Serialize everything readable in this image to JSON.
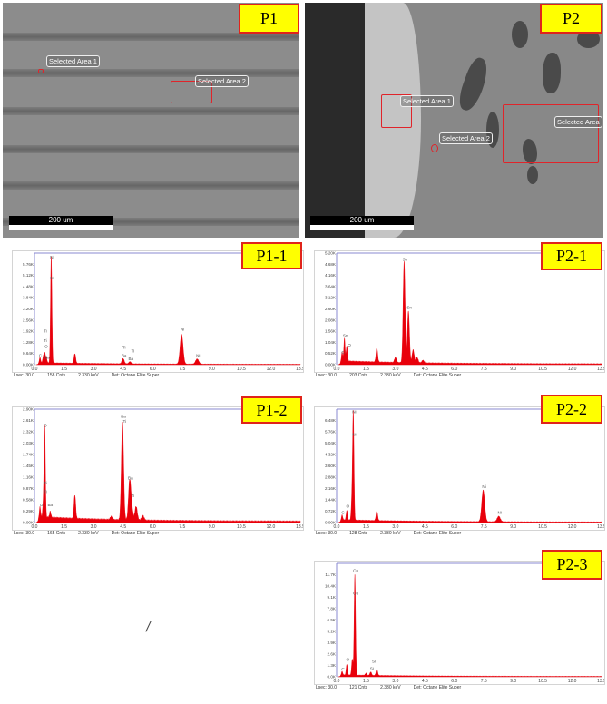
{
  "images": [
    {
      "tag": "P1",
      "areas": [
        "Selected Area 1",
        "Selected Area 2"
      ],
      "scale_bar": "200 um"
    },
    {
      "tag": "P2",
      "areas": [
        "Selected Area 1",
        "Selected Area 2",
        "Selected Area"
      ],
      "scale_bar": "200 um"
    }
  ],
  "colors": {
    "spectrum": "#e8000b",
    "tag_fill": "#ffff00",
    "tag_border": "#e0241b",
    "selection": "#e0242a"
  },
  "chart_data": [
    {
      "type": "area",
      "tag": "P1-1",
      "xlabel": "",
      "ylabel": "",
      "xlim": [
        0,
        13.5
      ],
      "ylim": [
        0,
        6.4
      ],
      "xticks": [
        "0.0",
        "1.5",
        "3.0",
        "4.5",
        "6.0",
        "7.5",
        "9.0",
        "10.5",
        "12.0",
        "13.5"
      ],
      "yticks": [
        "0.00K",
        "0.64K",
        "1.28K",
        "1.92K",
        "2.56K",
        "3.20K",
        "3.84K",
        "4.48K",
        "5.12K",
        "5.76K"
      ],
      "peaks_keV_kcounts": [
        [
          0.28,
          0.3
        ],
        [
          0.45,
          0.35
        ],
        [
          0.52,
          0.55
        ],
        [
          0.6,
          0.3
        ],
        [
          0.85,
          6.1
        ],
        [
          2.05,
          0.55
        ],
        [
          4.5,
          0.3
        ],
        [
          4.85,
          0.12
        ],
        [
          7.47,
          1.7
        ],
        [
          8.26,
          0.3
        ]
      ],
      "peak_labels": [
        {
          "text": "C",
          "x": 0.25,
          "y": 0.45
        },
        {
          "text": "Ba",
          "x": 0.6,
          "y": 0.35
        },
        {
          "text": "O",
          "x": 0.55,
          "y": 0.95
        },
        {
          "text": "Ti",
          "x": 0.5,
          "y": 1.3
        },
        {
          "text": "Ti",
          "x": 0.5,
          "y": 1.85
        },
        {
          "text": "Ni",
          "x": 0.85,
          "y": 6.1
        },
        {
          "text": "Ni",
          "x": 0.85,
          "y": 4.9
        },
        {
          "text": "Ba",
          "x": 4.5,
          "y": 0.45
        },
        {
          "text": "Ti",
          "x": 4.5,
          "y": 0.9
        },
        {
          "text": "Ba",
          "x": 4.85,
          "y": 0.25
        },
        {
          "text": "Ti",
          "x": 4.95,
          "y": 0.7
        },
        {
          "text": "Ni",
          "x": 7.47,
          "y": 1.95
        },
        {
          "text": "Ni",
          "x": 8.26,
          "y": 0.45
        }
      ],
      "background_kcounts": 0.08,
      "footer": {
        "lsec": "Lsec: 30.0",
        "counts": "158 Cnts",
        "kev": "2.330 keV",
        "det": "Det: Octane Elite Super"
      }
    },
    {
      "type": "area",
      "tag": "P2-1",
      "xlabel": "",
      "ylabel": "",
      "xlim": [
        0,
        13.5
      ],
      "ylim": [
        0,
        5.2
      ],
      "xticks": [
        "0.0",
        "1.5",
        "3.0",
        "4.5",
        "6.0",
        "7.5",
        "9.0",
        "10.5",
        "12.0",
        "13.5"
      ],
      "yticks": [
        "0.00K",
        "0.52K",
        "1.04K",
        "1.56K",
        "2.08K",
        "2.60K",
        "3.12K",
        "3.64K",
        "4.16K",
        "4.68K",
        "5.20K"
      ],
      "peaks_keV_kcounts": [
        [
          0.28,
          0.4
        ],
        [
          0.4,
          1.05
        ],
        [
          0.52,
          0.7
        ],
        [
          2.05,
          0.65
        ],
        [
          3.0,
          0.25
        ],
        [
          3.44,
          4.7
        ],
        [
          3.66,
          2.4
        ],
        [
          3.9,
          0.6
        ],
        [
          4.1,
          0.25
        ],
        [
          4.4,
          0.12
        ]
      ],
      "peak_labels": [
        {
          "text": "C",
          "x": 0.28,
          "y": 0.5
        },
        {
          "text": "Sn",
          "x": 0.4,
          "y": 1.3
        },
        {
          "text": "O",
          "x": 0.6,
          "y": 0.85
        },
        {
          "text": "Sn",
          "x": 3.44,
          "y": 4.85
        },
        {
          "text": "Sn",
          "x": 3.66,
          "y": 2.6
        }
      ],
      "background_kcounts": 0.12,
      "footer": {
        "lsec": "Lsec: 30.0",
        "counts": "203 Cnts",
        "kev": "2.330 keV",
        "det": "Det: Octane Elite Super"
      }
    },
    {
      "type": "area",
      "tag": "P1-2",
      "xlabel": "",
      "ylabel": "",
      "xlim": [
        0,
        13.5
      ],
      "ylim": [
        0,
        2.9
      ],
      "xticks": [
        "0.0",
        "1.5",
        "3.0",
        "4.5",
        "6.0",
        "7.5",
        "9.0",
        "10.5",
        "12.0",
        "13.5"
      ],
      "yticks": [
        "0.00K",
        "0.29K",
        "0.58K",
        "0.87K",
        "1.16K",
        "1.45K",
        "1.74K",
        "2.03K",
        "2.32K",
        "2.61K",
        "2.90K"
      ],
      "peaks_keV_kcounts": [
        [
          0.28,
          0.25
        ],
        [
          0.45,
          0.35
        ],
        [
          0.52,
          2.3
        ],
        [
          0.8,
          0.15
        ],
        [
          2.05,
          0.6
        ],
        [
          3.9,
          0.08
        ],
        [
          4.47,
          2.5
        ],
        [
          4.83,
          0.95
        ],
        [
          4.93,
          0.35
        ],
        [
          5.16,
          0.35
        ],
        [
          5.5,
          0.12
        ]
      ],
      "peak_labels": [
        {
          "text": "O",
          "x": 0.5,
          "y": 2.45
        },
        {
          "text": "Ti",
          "x": 0.5,
          "y": 0.98
        },
        {
          "text": "Ti",
          "x": 0.5,
          "y": 0.75
        },
        {
          "text": "O",
          "x": 0.3,
          "y": 0.42
        },
        {
          "text": "Ba",
          "x": 0.75,
          "y": 0.42
        },
        {
          "text": "Ba",
          "x": 4.47,
          "y": 2.68
        },
        {
          "text": "Ti",
          "x": 4.53,
          "y": 2.55
        },
        {
          "text": "Ba",
          "x": 4.83,
          "y": 1.1
        },
        {
          "text": "Ti",
          "x": 4.95,
          "y": 0.65
        }
      ],
      "background_kcounts": 0.1,
      "footer": {
        "lsec": "Lsec: 30.0",
        "counts": "165 Cnts",
        "kev": "2.330 keV",
        "det": "Det: Octane Elite Super"
      }
    },
    {
      "type": "area",
      "tag": "P2-2",
      "xlabel": "",
      "ylabel": "",
      "xlim": [
        0,
        13.5
      ],
      "ylim": [
        0,
        7.2
      ],
      "xticks": [
        "0.0",
        "1.5",
        "3.0",
        "4.5",
        "6.0",
        "7.5",
        "9.0",
        "10.5",
        "12.0",
        "13.5"
      ],
      "yticks": [
        "0.00K",
        "0.72K",
        "1.44K",
        "2.16K",
        "2.88K",
        "3.60K",
        "4.32K",
        "5.04K",
        "5.76K",
        "6.48K"
      ],
      "peaks_keV_kcounts": [
        [
          0.28,
          0.3
        ],
        [
          0.52,
          0.6
        ],
        [
          0.78,
          1.2
        ],
        [
          0.85,
          6.8
        ],
        [
          2.05,
          0.6
        ],
        [
          7.47,
          2.0
        ],
        [
          8.26,
          0.35
        ]
      ],
      "peak_labels": [
        {
          "text": "C",
          "x": 0.28,
          "y": 0.55
        },
        {
          "text": "O",
          "x": 0.52,
          "y": 0.95
        },
        {
          "text": "Ni",
          "x": 0.85,
          "y": 6.95
        },
        {
          "text": "Ni",
          "x": 0.85,
          "y": 5.5
        },
        {
          "text": "Ni",
          "x": 7.47,
          "y": 2.2
        },
        {
          "text": "Ni",
          "x": 8.26,
          "y": 0.55
        }
      ],
      "background_kcounts": 0.12,
      "footer": {
        "lsec": "Lsec: 30.0",
        "counts": "128 Cnts",
        "kev": "2.330 keV",
        "det": "Det: Octane Elite Super"
      }
    },
    {
      "type": "area",
      "tag": "P2-3",
      "xlabel": "",
      "ylabel": "",
      "xlim": [
        0,
        13.5
      ],
      "ylim": [
        0,
        13.0
      ],
      "xticks": [
        "0.0",
        "1.5",
        "3.0",
        "4.5",
        "6.0",
        "7.5",
        "9.0",
        "10.5",
        "12.0",
        "13.5"
      ],
      "yticks": [
        "0.0K",
        "1.3K",
        "2.6K",
        "3.9K",
        "5.2K",
        "6.5K",
        "7.8K",
        "9.1K",
        "10.4K",
        "11.7K"
      ],
      "peaks_keV_kcounts": [
        [
          0.28,
          0.4
        ],
        [
          0.52,
          1.2
        ],
        [
          0.8,
          1.8
        ],
        [
          0.93,
          11.5
        ],
        [
          1.5,
          0.25
        ],
        [
          1.74,
          0.4
        ],
        [
          2.05,
          0.7
        ]
      ],
      "peak_labels": [
        {
          "text": "C",
          "x": 0.28,
          "y": 0.75
        },
        {
          "text": "O",
          "x": 0.52,
          "y": 1.8
        },
        {
          "text": "Cu",
          "x": 0.93,
          "y": 12.0
        },
        {
          "text": "Cu",
          "x": 0.93,
          "y": 9.4
        },
        {
          "text": "Si",
          "x": 1.85,
          "y": 1.6
        },
        {
          "text": "Si",
          "x": 1.75,
          "y": 0.8
        }
      ],
      "background_kcounts": 0.15,
      "footer": {
        "lsec": "Lsec: 30.0",
        "counts": "121 Cnts",
        "kev": "2.330 keV",
        "det": "Det: Octane Elite Super"
      }
    }
  ]
}
